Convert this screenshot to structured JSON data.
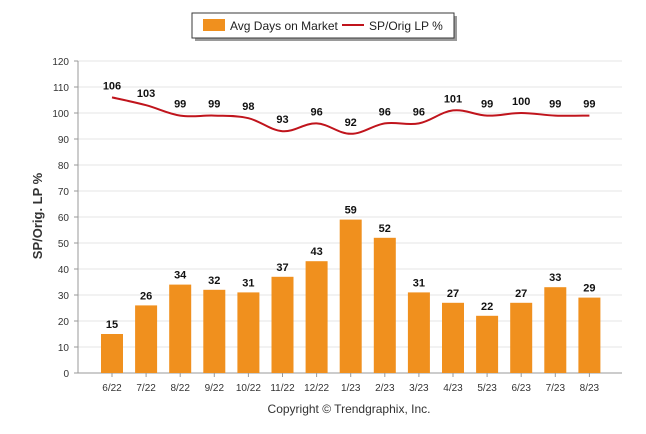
{
  "chart_data": {
    "type": "bar",
    "categories": [
      "6/22",
      "7/22",
      "8/22",
      "9/22",
      "10/22",
      "11/22",
      "12/22",
      "1/23",
      "2/23",
      "3/23",
      "4/23",
      "5/23",
      "6/23",
      "7/23",
      "8/23"
    ],
    "series": [
      {
        "name": "Avg Days on Market",
        "type": "bar",
        "values": [
          15,
          26,
          34,
          32,
          31,
          37,
          43,
          59,
          52,
          31,
          27,
          22,
          27,
          33,
          29
        ],
        "color": "#F0901E"
      },
      {
        "name": "SP/Orig LP %",
        "type": "line",
        "values": [
          106,
          103,
          99,
          99,
          98,
          93,
          96,
          92,
          96,
          96,
          101,
          99,
          100,
          99,
          99
        ],
        "color": "#C0141C"
      }
    ],
    "ylabel": "SP/Orig. LP %",
    "ylim": [
      0,
      120
    ],
    "yticks": [
      0,
      10,
      20,
      30,
      40,
      50,
      60,
      70,
      80,
      90,
      100,
      110,
      120
    ],
    "grid": true,
    "legend_position": "top-center",
    "footer": "Copyright © Trendgraphix, Inc."
  }
}
